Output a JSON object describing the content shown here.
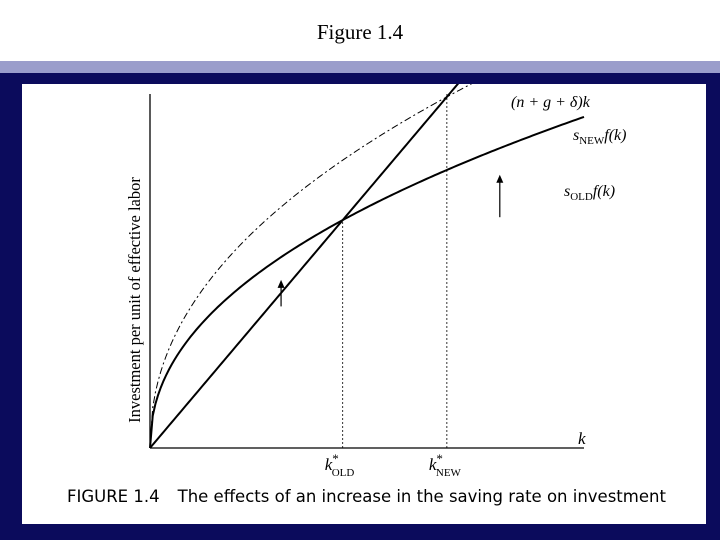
{
  "slide": {
    "title": "Figure 1.4"
  },
  "colors": {
    "frame": "#0b0b5c",
    "band": "#9a9dcb"
  },
  "caption": {
    "number": "FIGURE 1.4",
    "text": "The effects of an increase in the saving rate on investment"
  },
  "chart_data": {
    "type": "line",
    "xlabel": "k",
    "ylabel": "Investment per unit of effective labor",
    "xlim": [
      0,
      1
    ],
    "ylim": [
      0,
      1
    ],
    "grid": false,
    "x_ticks": [
      {
        "x": 0.444,
        "base": "k",
        "sup": "*",
        "sub": "OLD"
      },
      {
        "x": 0.684,
        "base": "k",
        "sup": "*",
        "sub": "NEW"
      }
    ],
    "series": [
      {
        "key": "breakeven",
        "name": "(n + g + δ)k",
        "style": "solid",
        "label_parts": {
          "base": "(n + g + δ)k"
        }
      },
      {
        "key": "s_new",
        "name": "s_NEW f(k)",
        "style": "dashed",
        "label_parts": {
          "s": "s",
          "sub": "NEW",
          "rest": "f(k)"
        }
      },
      {
        "key": "s_old",
        "name": "s_OLD f(k)",
        "style": "solid",
        "label_parts": {
          "s": "s",
          "sub": "OLD",
          "rest": "f(k)"
        }
      }
    ],
    "arrows": [
      {
        "x": 0.302,
        "from": 0.4,
        "to": 0.475
      },
      {
        "x": 0.806,
        "from": 0.652,
        "to": 0.772
      }
    ]
  }
}
